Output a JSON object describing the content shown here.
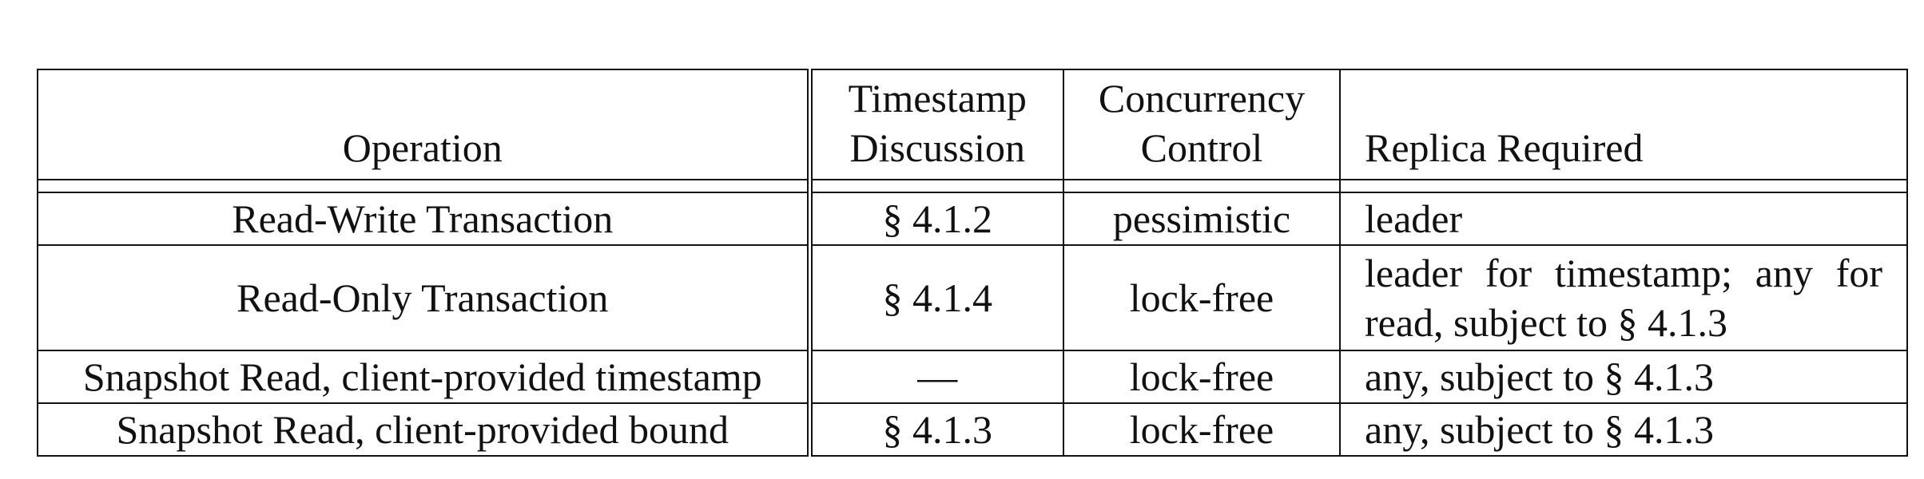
{
  "table": {
    "headers": {
      "operation": "Operation",
      "timestamp_line1": "Timestamp",
      "timestamp_line2": "Discussion",
      "concurrency_line1": "Concurrency",
      "concurrency_line2": "Control",
      "replica": "Replica Required"
    },
    "rows": [
      {
        "operation": "Read-Write Transaction",
        "timestamp": "§ 4.1.2",
        "concurrency": "pessimistic",
        "replica": "leader"
      },
      {
        "operation": "Read-Only Transaction",
        "timestamp": "§ 4.1.4",
        "concurrency": "lock-free",
        "replica": "leader for timestamp; any for read, subject to § 4.1.3"
      },
      {
        "operation": "Snapshot Read, client-provided timestamp",
        "timestamp": "—",
        "concurrency": "lock-free",
        "replica": "any, subject to § 4.1.3"
      },
      {
        "operation": "Snapshot Read, client-provided bound",
        "timestamp": "§ 4.1.3",
        "concurrency": "lock-free",
        "replica": "any, subject to § 4.1.3"
      }
    ]
  }
}
